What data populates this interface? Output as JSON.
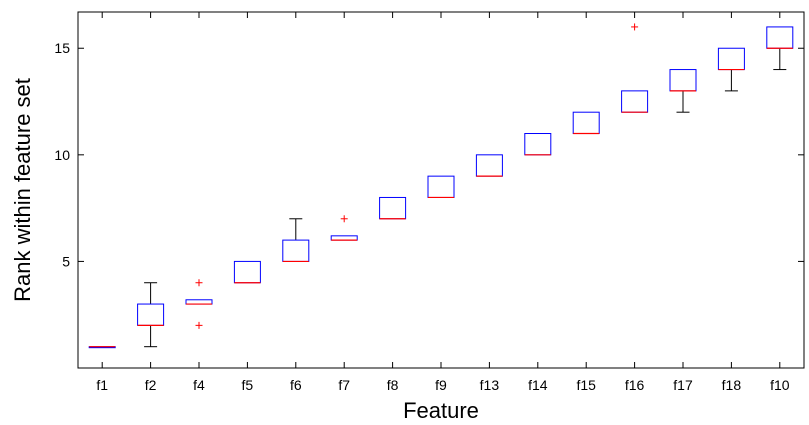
{
  "chart_data": {
    "type": "box",
    "title": "",
    "xlabel": "Feature",
    "ylabel": "Rank within feature set",
    "ylim": [
      0,
      16.7
    ],
    "yticks": [
      5,
      10,
      15
    ],
    "grid": false,
    "legend": "none",
    "categories": [
      "f1",
      "f2",
      "f4",
      "f5",
      "f6",
      "f7",
      "f8",
      "f9",
      "f13",
      "f14",
      "f15",
      "f16",
      "f17",
      "f18",
      "f10"
    ],
    "boxes": [
      {
        "q1": 1,
        "median": 1,
        "q3": 1,
        "whisker_low": 1,
        "whisker_high": 1,
        "outliers": []
      },
      {
        "q1": 2,
        "median": 2,
        "q3": 3,
        "whisker_low": 1,
        "whisker_high": 4,
        "outliers": []
      },
      {
        "q1": 3,
        "median": 3,
        "q3": 3.2,
        "whisker_low": 3,
        "whisker_high": 3.2,
        "outliers": [
          2,
          4
        ]
      },
      {
        "q1": 4,
        "median": 4,
        "q3": 5,
        "whisker_low": 4,
        "whisker_high": 5,
        "outliers": []
      },
      {
        "q1": 5,
        "median": 5,
        "q3": 6,
        "whisker_low": 5,
        "whisker_high": 7,
        "outliers": []
      },
      {
        "q1": 6,
        "median": 6,
        "q3": 6.2,
        "whisker_low": 6,
        "whisker_high": 6.2,
        "outliers": [
          7
        ]
      },
      {
        "q1": 7,
        "median": 7,
        "q3": 8,
        "whisker_low": 7,
        "whisker_high": 8,
        "outliers": []
      },
      {
        "q1": 8,
        "median": 8,
        "q3": 9,
        "whisker_low": 8,
        "whisker_high": 9,
        "outliers": []
      },
      {
        "q1": 9,
        "median": 9,
        "q3": 10,
        "whisker_low": 9,
        "whisker_high": 10,
        "outliers": []
      },
      {
        "q1": 10,
        "median": 10,
        "q3": 11,
        "whisker_low": 10,
        "whisker_high": 11,
        "outliers": []
      },
      {
        "q1": 11,
        "median": 11,
        "q3": 12,
        "whisker_low": 11,
        "whisker_high": 12,
        "outliers": []
      },
      {
        "q1": 12,
        "median": 12,
        "q3": 13,
        "whisker_low": 12,
        "whisker_high": 13,
        "outliers": [
          16
        ]
      },
      {
        "q1": 13,
        "median": 13,
        "q3": 14,
        "whisker_low": 12,
        "whisker_high": 14,
        "outliers": []
      },
      {
        "q1": 14,
        "median": 14,
        "q3": 15,
        "whisker_low": 13,
        "whisker_high": 15,
        "outliers": []
      },
      {
        "q1": 15,
        "median": 15,
        "q3": 16,
        "whisker_low": 14,
        "whisker_high": 16,
        "outliers": []
      }
    ],
    "colors": {
      "box": "#0000ff",
      "median": "#ff0000",
      "whisker": "#000000",
      "outlier": "#ff0000",
      "axis": "#000000"
    }
  }
}
